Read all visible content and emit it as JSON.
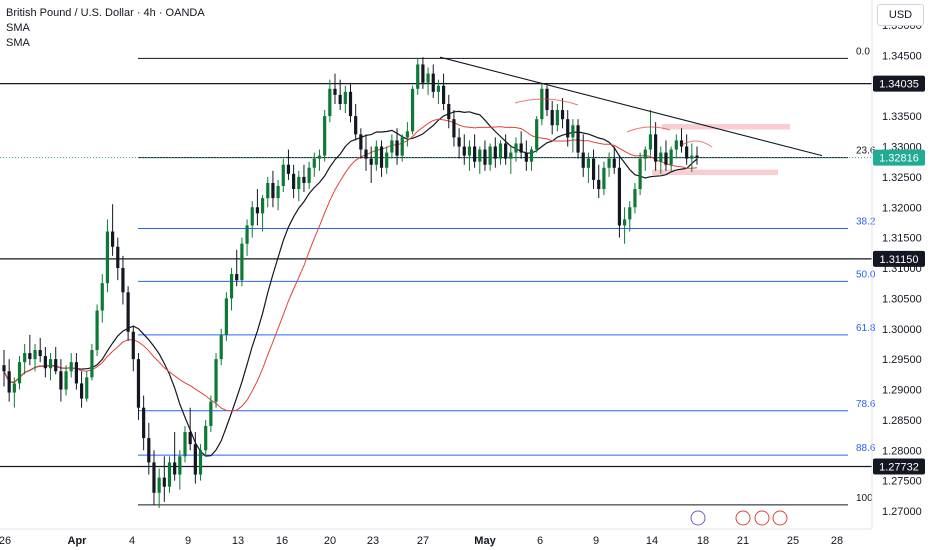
{
  "legend": {
    "title": "British Pound / U.S. Dollar · 4h · OANDA",
    "indicators": [
      "SMA",
      "SMA"
    ]
  },
  "currency_button": "USD",
  "colors": {
    "up_candle": "#0c7a35",
    "down_candle": "#131722",
    "sma_fast": "#131722",
    "sma_slow": "#e0453c",
    "fib_line": "#2962ff",
    "hline": "#131722",
    "zone": "#f7c6c9",
    "last_price_bg": "#22ab94"
  },
  "chart_data": {
    "type": "candlestick",
    "instrument": "British Pound / U.S. Dollar",
    "timeframe": "4h",
    "source": "OANDA",
    "ylim": [
      1.2695,
      1.3535
    ],
    "price_axis_ticks": [
      "1.35000",
      "1.34500",
      "1.34000",
      "1.33500",
      "1.33000",
      "1.32500",
      "1.32000",
      "1.31500",
      "1.31000",
      "1.30500",
      "1.30000",
      "1.29500",
      "1.29000",
      "1.28500",
      "1.28000",
      "1.27500",
      "1.27000"
    ],
    "time_axis_ticks": [
      "26",
      "Apr",
      "4",
      "9",
      "13",
      "16",
      "20",
      "23",
      "27",
      "May",
      "6",
      "9",
      "14",
      "18",
      "21",
      "25",
      "28"
    ],
    "horizontal_lines": [
      {
        "price": 1.34035,
        "label": "1.34035"
      },
      {
        "price": 1.3115,
        "label": "1.31150"
      },
      {
        "price": 1.27732,
        "label": "1.27732"
      }
    ],
    "last_price": {
      "price": 1.32816,
      "label": "1.32816"
    },
    "fibonacci": [
      {
        "level_label": "0.0",
        "price": 1.3445
      },
      {
        "level_label": "23.6",
        "price": 1.32816
      },
      {
        "level_label": "38.2",
        "price": 1.3165
      },
      {
        "level_label": "50.0",
        "price": 1.3078
      },
      {
        "level_label": "61.8",
        "price": 1.299
      },
      {
        "level_label": "78.6",
        "price": 1.2865
      },
      {
        "level_label": "88.6",
        "price": 1.2792
      },
      {
        "level_label": "100",
        "price": 1.271
      }
    ],
    "trendline": {
      "from": {
        "date": "Apr 27",
        "price": 1.3447
      },
      "to": {
        "date": "May 25",
        "price": 1.3285
      }
    },
    "zones": [
      {
        "name": "resistance",
        "from": "May 14",
        "to": "May 20",
        "price_high": 1.3337,
        "price_low": 1.3328
      },
      {
        "name": "support",
        "from": "May 14",
        "to": "May 20",
        "price_high": 1.3262,
        "price_low": 1.3253
      }
    ],
    "candles": [
      [
        1.294,
        1.2965,
        1.2905,
        1.293
      ],
      [
        1.293,
        1.295,
        1.288,
        1.2895
      ],
      [
        1.2895,
        1.292,
        1.287,
        1.291
      ],
      [
        1.291,
        1.2955,
        1.29,
        1.2945
      ],
      [
        1.2945,
        1.2975,
        1.2925,
        1.296
      ],
      [
        1.296,
        1.299,
        1.294,
        1.295
      ],
      [
        1.295,
        1.2975,
        1.293,
        1.2965
      ],
      [
        1.2965,
        1.2985,
        1.2945,
        1.2955
      ],
      [
        1.2955,
        1.297,
        1.292,
        1.2935
      ],
      [
        1.2935,
        1.296,
        1.2915,
        1.295
      ],
      [
        1.295,
        1.297,
        1.2925,
        1.293
      ],
      [
        1.293,
        1.295,
        1.288,
        1.29
      ],
      [
        1.29,
        1.294,
        1.289,
        1.293
      ],
      [
        1.293,
        1.296,
        1.292,
        1.2945
      ],
      [
        1.2945,
        1.296,
        1.29,
        1.291
      ],
      [
        1.291,
        1.293,
        1.287,
        1.2885
      ],
      [
        1.2885,
        1.293,
        1.288,
        1.292
      ],
      [
        1.292,
        1.2975,
        1.2915,
        1.2965
      ],
      [
        1.2965,
        1.304,
        1.2955,
        1.303
      ],
      [
        1.303,
        1.309,
        1.301,
        1.3075
      ],
      [
        1.3075,
        1.318,
        1.306,
        1.316
      ],
      [
        1.316,
        1.3205,
        1.312,
        1.3135
      ],
      [
        1.3135,
        1.315,
        1.308,
        1.31
      ],
      [
        1.31,
        1.312,
        1.304,
        1.306
      ],
      [
        1.306,
        1.307,
        1.298,
        1.2995
      ],
      [
        1.2995,
        1.3005,
        1.293,
        1.295
      ],
      [
        1.295,
        1.296,
        1.285,
        1.287
      ],
      [
        1.287,
        1.289,
        1.28,
        1.282
      ],
      [
        1.282,
        1.2845,
        1.276,
        1.278
      ],
      [
        1.278,
        1.28,
        1.271,
        1.273
      ],
      [
        1.273,
        1.277,
        1.2705,
        1.2755
      ],
      [
        1.2755,
        1.279,
        1.2715,
        1.274
      ],
      [
        1.274,
        1.279,
        1.273,
        1.278
      ],
      [
        1.278,
        1.283,
        1.275,
        1.276
      ],
      [
        1.276,
        1.28,
        1.2735,
        1.279
      ],
      [
        1.279,
        1.284,
        1.278,
        1.283
      ],
      [
        1.283,
        1.287,
        1.28,
        1.281
      ],
      [
        1.281,
        1.283,
        1.2745,
        1.276
      ],
      [
        1.276,
        1.281,
        1.275,
        1.28
      ],
      [
        1.28,
        1.285,
        1.279,
        1.284
      ],
      [
        1.284,
        1.289,
        1.283,
        1.288
      ],
      [
        1.288,
        1.296,
        1.287,
        1.295
      ],
      [
        1.295,
        1.3,
        1.294,
        1.299
      ],
      [
        1.299,
        1.306,
        1.298,
        1.305
      ],
      [
        1.305,
        1.31,
        1.303,
        1.309
      ],
      [
        1.309,
        1.313,
        1.307,
        1.308
      ],
      [
        1.308,
        1.315,
        1.307,
        1.314
      ],
      [
        1.314,
        1.318,
        1.312,
        1.317
      ],
      [
        1.317,
        1.321,
        1.315,
        1.32
      ],
      [
        1.32,
        1.323,
        1.317,
        1.319
      ],
      [
        1.319,
        1.322,
        1.316,
        1.3215
      ],
      [
        1.3215,
        1.325,
        1.32,
        1.324
      ],
      [
        1.324,
        1.326,
        1.32,
        1.3215
      ],
      [
        1.3215,
        1.3245,
        1.3195,
        1.3235
      ],
      [
        1.3235,
        1.328,
        1.3225,
        1.327
      ],
      [
        1.327,
        1.3295,
        1.3245,
        1.3255
      ],
      [
        1.3255,
        1.327,
        1.3215,
        1.323
      ],
      [
        1.323,
        1.326,
        1.321,
        1.325
      ],
      [
        1.325,
        1.327,
        1.3225,
        1.324
      ],
      [
        1.324,
        1.3275,
        1.323,
        1.3265
      ],
      [
        1.3265,
        1.329,
        1.325,
        1.328
      ],
      [
        1.328,
        1.3295,
        1.326,
        1.3285
      ],
      [
        1.3285,
        1.336,
        1.3275,
        1.335
      ],
      [
        1.335,
        1.341,
        1.334,
        1.3395
      ],
      [
        1.3395,
        1.342,
        1.337,
        1.3385
      ],
      [
        1.3385,
        1.341,
        1.336,
        1.337
      ],
      [
        1.337,
        1.34,
        1.3355,
        1.339
      ],
      [
        1.339,
        1.3405,
        1.334,
        1.335
      ],
      [
        1.335,
        1.337,
        1.331,
        1.332
      ],
      [
        1.332,
        1.333,
        1.328,
        1.3295
      ],
      [
        1.3295,
        1.332,
        1.326,
        1.328
      ],
      [
        1.328,
        1.33,
        1.324,
        1.327
      ],
      [
        1.327,
        1.331,
        1.326,
        1.33
      ],
      [
        1.33,
        1.331,
        1.325,
        1.3265
      ],
      [
        1.3265,
        1.33,
        1.3255,
        1.329
      ],
      [
        1.329,
        1.332,
        1.328,
        1.331
      ],
      [
        1.331,
        1.333,
        1.327,
        1.3285
      ],
      [
        1.3285,
        1.332,
        1.3275,
        1.3315
      ],
      [
        1.3315,
        1.334,
        1.33,
        1.3325
      ],
      [
        1.3325,
        1.34,
        1.332,
        1.3395
      ],
      [
        1.3395,
        1.3445,
        1.3385,
        1.3435
      ],
      [
        1.3435,
        1.3447,
        1.3395,
        1.3405
      ],
      [
        1.3405,
        1.343,
        1.3385,
        1.342
      ],
      [
        1.342,
        1.3435,
        1.338,
        1.339
      ],
      [
        1.339,
        1.341,
        1.337,
        1.34
      ],
      [
        1.34,
        1.342,
        1.336,
        1.337
      ],
      [
        1.337,
        1.3385,
        1.333,
        1.3345
      ],
      [
        1.3345,
        1.336,
        1.33,
        1.3315
      ],
      [
        1.3315,
        1.333,
        1.328,
        1.33
      ],
      [
        1.33,
        1.332,
        1.327,
        1.3285
      ],
      [
        1.3285,
        1.331,
        1.326,
        1.33
      ],
      [
        1.33,
        1.332,
        1.3265,
        1.3275
      ],
      [
        1.3275,
        1.33,
        1.3255,
        1.3295
      ],
      [
        1.3295,
        1.331,
        1.326,
        1.327
      ],
      [
        1.327,
        1.3305,
        1.326,
        1.33
      ],
      [
        1.33,
        1.3315,
        1.3265,
        1.328
      ],
      [
        1.328,
        1.331,
        1.327,
        1.3305
      ],
      [
        1.3305,
        1.332,
        1.327,
        1.328
      ],
      [
        1.328,
        1.33,
        1.3255,
        1.329
      ],
      [
        1.329,
        1.3315,
        1.3275,
        1.3305
      ],
      [
        1.3305,
        1.3325,
        1.328,
        1.329
      ],
      [
        1.329,
        1.331,
        1.326,
        1.3275
      ],
      [
        1.3275,
        1.33,
        1.326,
        1.3295
      ],
      [
        1.3295,
        1.335,
        1.329,
        1.3345
      ],
      [
        1.3345,
        1.3405,
        1.3335,
        1.3395
      ],
      [
        1.3395,
        1.34,
        1.335,
        1.336
      ],
      [
        1.336,
        1.3375,
        1.332,
        1.3335
      ],
      [
        1.3335,
        1.337,
        1.3325,
        1.336
      ],
      [
        1.336,
        1.338,
        1.333,
        1.3345
      ],
      [
        1.3345,
        1.336,
        1.33,
        1.3315
      ],
      [
        1.3315,
        1.3345,
        1.329,
        1.3335
      ],
      [
        1.3335,
        1.3345,
        1.328,
        1.329
      ],
      [
        1.329,
        1.332,
        1.325,
        1.3265
      ],
      [
        1.3265,
        1.329,
        1.324,
        1.328
      ],
      [
        1.328,
        1.3295,
        1.323,
        1.3245
      ],
      [
        1.3245,
        1.327,
        1.3215,
        1.323
      ],
      [
        1.323,
        1.3275,
        1.322,
        1.3265
      ],
      [
        1.3265,
        1.329,
        1.325,
        1.328
      ],
      [
        1.328,
        1.33,
        1.3255,
        1.3265
      ],
      [
        1.3265,
        1.3285,
        1.315,
        1.317
      ],
      [
        1.317,
        1.32,
        1.314,
        1.318
      ],
      [
        1.318,
        1.321,
        1.316,
        1.32
      ],
      [
        1.32,
        1.324,
        1.319,
        1.323
      ],
      [
        1.323,
        1.329,
        1.322,
        1.328
      ],
      [
        1.328,
        1.33,
        1.326,
        1.3295
      ],
      [
        1.3295,
        1.336,
        1.3285,
        1.332
      ],
      [
        1.332,
        1.334,
        1.326,
        1.3275
      ],
      [
        1.3275,
        1.33,
        1.3255,
        1.329
      ],
      [
        1.329,
        1.331,
        1.326,
        1.327
      ],
      [
        1.327,
        1.33,
        1.326,
        1.3295
      ],
      [
        1.3295,
        1.332,
        1.328,
        1.331
      ],
      [
        1.331,
        1.333,
        1.329,
        1.33
      ],
      [
        1.33,
        1.332,
        1.327,
        1.328
      ],
      [
        1.328,
        1.3305,
        1.3258,
        1.3285
      ],
      [
        1.3285,
        1.33,
        1.327,
        1.3282
      ]
    ]
  }
}
